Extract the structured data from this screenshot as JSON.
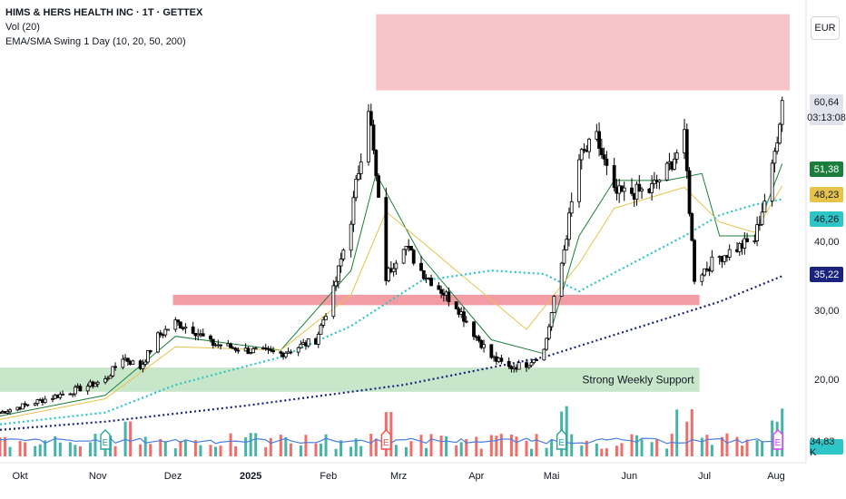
{
  "legend": {
    "title": "HIMS & HERS HEALTH INC · 1T · GETTEX",
    "volume": "Vol (20)",
    "indicator": "EMA/SMA Swing 1 Day (10, 20, 50, 200)"
  },
  "currency_button": "EUR",
  "price_tags": {
    "last_price": "60,64",
    "countdown": "03:13:08",
    "ema10": "51,38",
    "ema20": "48,23",
    "sma50": "46,26",
    "sma200": "35,22",
    "volume": "34,83 K"
  },
  "colors": {
    "up": "#26a69a",
    "down": "#ef5350",
    "candle": "#000000",
    "ema10": "#1b7f3b",
    "ema20": "#e6c34a",
    "sma50": "#2ec5c6",
    "sma200": "#1a237e",
    "resistance_zone": "#f7c4c9",
    "support_zone": "#c8e6c9",
    "volume_ma": "#4a7fe0"
  },
  "chart_data": {
    "type": "candlestick",
    "y_axis": {
      "ticks": [
        "40,00",
        "30,00",
        "20,00"
      ],
      "range": [
        13.5,
        74
      ],
      "label_positions": [
        40,
        30,
        20
      ]
    },
    "x_axis": {
      "ticks": [
        "Okt",
        "Nov",
        "Dez",
        "2025",
        "Feb",
        "Mrz",
        "Apr",
        "Mai",
        "Jun",
        "Jul",
        "Aug"
      ],
      "range": [
        "2024-09-23",
        "2025-08-04"
      ]
    },
    "zones": [
      {
        "type": "resistance",
        "from": "2025-02-20",
        "to": "2025-08-04",
        "low": 62,
        "high": 73
      },
      {
        "type": "resistance",
        "from": "2024-12-01",
        "to": "2025-06-29",
        "low": 31,
        "high": 32.5
      },
      {
        "type": "support",
        "from": "2024-09-23",
        "to": "2025-06-29",
        "low": 18.5,
        "high": 22,
        "label": "Strong Weekly Support"
      }
    ],
    "earnings_markers": [
      {
        "date": "2024-11-04",
        "label": "E",
        "color": "#26a69a"
      },
      {
        "date": "2025-02-24",
        "label": "E",
        "color": "#ef5350"
      },
      {
        "date": "2025-05-05",
        "label": "E",
        "color": "#26a69a"
      },
      {
        "date": "2025-08-04",
        "label": "E",
        "color": "#e040fb"
      }
    ],
    "series": [
      {
        "name": "Close",
        "type": "candle",
        "points": [
          [
            "2024-09-23",
            15.5
          ],
          [
            "2024-10-07",
            17.0
          ],
          [
            "2024-10-21",
            18.5
          ],
          [
            "2024-11-04",
            20.2
          ],
          [
            "2024-11-11",
            23.5
          ],
          [
            "2024-11-18",
            22.0
          ],
          [
            "2024-11-25",
            26.5
          ],
          [
            "2024-12-02",
            28.5
          ],
          [
            "2024-12-09",
            27.5
          ],
          [
            "2024-12-16",
            25.5
          ],
          [
            "2024-12-30",
            24.5
          ],
          [
            "2025-01-13",
            24.0
          ],
          [
            "2025-01-27",
            26.0
          ],
          [
            "2025-02-03",
            33.0
          ],
          [
            "2025-02-10",
            43.5
          ],
          [
            "2025-02-17",
            60.0
          ],
          [
            "2025-02-24",
            35.0
          ],
          [
            "2025-03-03",
            40.0
          ],
          [
            "2025-03-10",
            36.0
          ],
          [
            "2025-03-17",
            33.5
          ],
          [
            "2025-03-24",
            31.0
          ],
          [
            "2025-03-31",
            27.0
          ],
          [
            "2025-04-07",
            23.5
          ],
          [
            "2025-04-14",
            22.0
          ],
          [
            "2025-04-21",
            22.5
          ],
          [
            "2025-04-28",
            24.5
          ],
          [
            "2025-05-05",
            37.0
          ],
          [
            "2025-05-12",
            52.0
          ],
          [
            "2025-05-19",
            55.0
          ],
          [
            "2025-05-26",
            47.0
          ],
          [
            "2025-06-09",
            47.5
          ],
          [
            "2025-06-16",
            50.5
          ],
          [
            "2025-06-23",
            55.0
          ],
          [
            "2025-06-27",
            35.0
          ],
          [
            "2025-07-07",
            38.0
          ],
          [
            "2025-07-21",
            40.5
          ],
          [
            "2025-07-28",
            50.5
          ],
          [
            "2025-08-01",
            60.6
          ]
        ]
      },
      {
        "name": "EMA 10",
        "points": [
          [
            "2024-09-23",
            15.0
          ],
          [
            "2024-11-04",
            18.0
          ],
          [
            "2024-12-02",
            26.5
          ],
          [
            "2025-01-13",
            24.5
          ],
          [
            "2025-02-10",
            36.0
          ],
          [
            "2025-02-20",
            50.0
          ],
          [
            "2025-03-10",
            38.0
          ],
          [
            "2025-04-07",
            26.0
          ],
          [
            "2025-04-28",
            24.0
          ],
          [
            "2025-05-12",
            41.0
          ],
          [
            "2025-05-26",
            49.0
          ],
          [
            "2025-06-16",
            49.0
          ],
          [
            "2025-06-30",
            50.0
          ],
          [
            "2025-07-07",
            41.0
          ],
          [
            "2025-07-21",
            41.0
          ],
          [
            "2025-08-01",
            51.4
          ]
        ]
      },
      {
        "name": "EMA 20",
        "points": [
          [
            "2024-09-23",
            14.5
          ],
          [
            "2024-11-04",
            17.5
          ],
          [
            "2024-12-02",
            25.0
          ],
          [
            "2025-01-13",
            24.5
          ],
          [
            "2025-02-10",
            32.5
          ],
          [
            "2025-02-24",
            44.5
          ],
          [
            "2025-03-24",
            36.0
          ],
          [
            "2025-04-21",
            27.5
          ],
          [
            "2025-05-12",
            37.0
          ],
          [
            "2025-05-26",
            45.0
          ],
          [
            "2025-06-23",
            48.0
          ],
          [
            "2025-07-07",
            43.0
          ],
          [
            "2025-07-21",
            41.5
          ],
          [
            "2025-08-01",
            48.2
          ]
        ]
      },
      {
        "name": "SMA 50",
        "points": [
          [
            "2024-09-23",
            13.8
          ],
          [
            "2024-11-04",
            15.5
          ],
          [
            "2024-12-02",
            19.5
          ],
          [
            "2025-01-13",
            23.5
          ],
          [
            "2025-02-10",
            28.0
          ],
          [
            "2025-03-10",
            34.5
          ],
          [
            "2025-04-07",
            36.0
          ],
          [
            "2025-04-28",
            35.5
          ],
          [
            "2025-05-12",
            33.0
          ],
          [
            "2025-06-02",
            37.0
          ],
          [
            "2025-06-23",
            41.0
          ],
          [
            "2025-07-07",
            44.0
          ],
          [
            "2025-07-21",
            45.5
          ],
          [
            "2025-08-01",
            46.3
          ]
        ]
      },
      {
        "name": "SMA 200",
        "points": [
          [
            "2024-09-23",
            13.0
          ],
          [
            "2024-11-04",
            14.2
          ],
          [
            "2024-12-30",
            16.5
          ],
          [
            "2025-03-03",
            19.5
          ],
          [
            "2025-04-28",
            23.5
          ],
          [
            "2025-06-02",
            27.5
          ],
          [
            "2025-07-07",
            31.5
          ],
          [
            "2025-08-01",
            35.2
          ]
        ]
      }
    ]
  }
}
